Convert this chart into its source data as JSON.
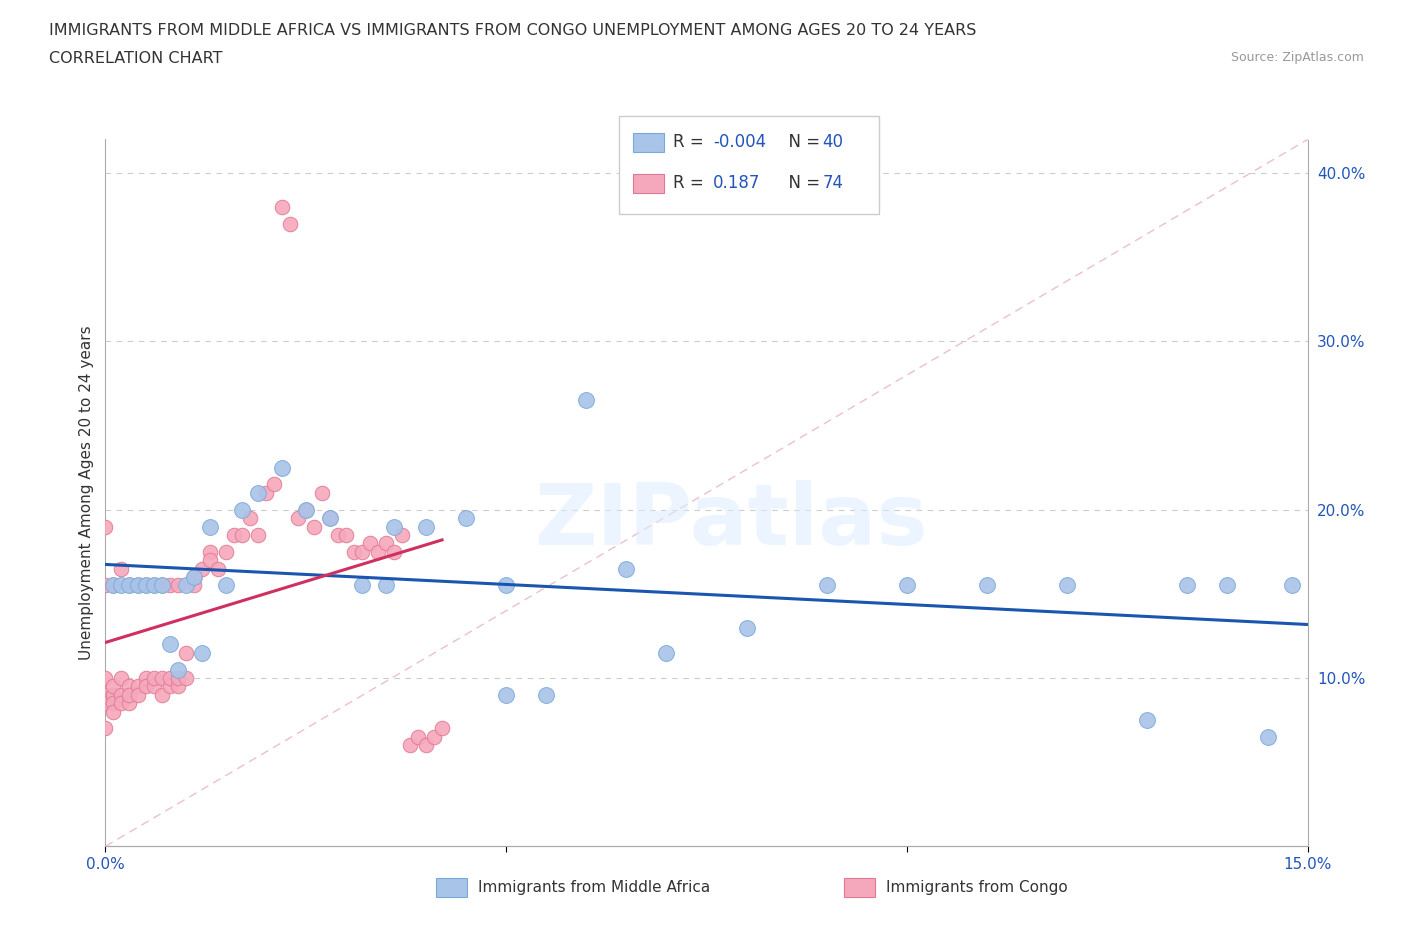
{
  "title_line1": "IMMIGRANTS FROM MIDDLE AFRICA VS IMMIGRANTS FROM CONGO UNEMPLOYMENT AMONG AGES 20 TO 24 YEARS",
  "title_line2": "CORRELATION CHART",
  "source_text": "Source: ZipAtlas.com",
  "ylabel": "Unemployment Among Ages 20 to 24 years",
  "xmin": 0.0,
  "xmax": 0.15,
  "ymin": 0.0,
  "ymax": 0.42,
  "blue_color": "#a8c4e8",
  "pink_color": "#f5a8bc",
  "blue_edge": "#7aa8d8",
  "pink_edge": "#e07890",
  "trend_blue_color": "#1a56b0",
  "trend_pink_color": "#d03060",
  "diag_color": "#e0a0b0",
  "watermark": "ZIPatlas",
  "legend_R_blue": "-0.004",
  "legend_N_blue": "40",
  "legend_R_pink": "0.187",
  "legend_N_pink": "74",
  "blue_x": [
    0.001,
    0.002,
    0.003,
    0.004,
    0.005,
    0.006,
    0.007,
    0.008,
    0.009,
    0.01,
    0.011,
    0.012,
    0.013,
    0.015,
    0.017,
    0.019,
    0.022,
    0.025,
    0.028,
    0.032,
    0.036,
    0.04,
    0.045,
    0.05,
    0.055,
    0.06,
    0.065,
    0.07,
    0.08,
    0.09,
    0.1,
    0.11,
    0.12,
    0.13,
    0.135,
    0.14,
    0.145,
    0.148,
    0.05,
    0.035
  ],
  "blue_y": [
    0.155,
    0.155,
    0.155,
    0.155,
    0.155,
    0.155,
    0.155,
    0.12,
    0.105,
    0.155,
    0.16,
    0.115,
    0.19,
    0.155,
    0.2,
    0.21,
    0.225,
    0.2,
    0.195,
    0.155,
    0.19,
    0.19,
    0.195,
    0.155,
    0.09,
    0.265,
    0.165,
    0.115,
    0.13,
    0.155,
    0.155,
    0.155,
    0.155,
    0.075,
    0.155,
    0.155,
    0.065,
    0.155,
    0.09,
    0.155
  ],
  "pink_x": [
    0.0,
    0.0,
    0.0,
    0.0,
    0.001,
    0.001,
    0.001,
    0.001,
    0.001,
    0.002,
    0.002,
    0.002,
    0.003,
    0.003,
    0.003,
    0.004,
    0.004,
    0.005,
    0.005,
    0.006,
    0.006,
    0.007,
    0.007,
    0.008,
    0.008,
    0.009,
    0.009,
    0.01,
    0.01,
    0.011,
    0.011,
    0.012,
    0.013,
    0.013,
    0.014,
    0.015,
    0.016,
    0.017,
    0.018,
    0.019,
    0.02,
    0.021,
    0.022,
    0.023,
    0.024,
    0.025,
    0.026,
    0.027,
    0.028,
    0.029,
    0.03,
    0.031,
    0.032,
    0.033,
    0.034,
    0.035,
    0.036,
    0.037,
    0.038,
    0.039,
    0.04,
    0.041,
    0.042,
    0.0,
    0.0,
    0.001,
    0.002,
    0.003,
    0.004,
    0.005,
    0.006,
    0.007,
    0.008,
    0.009
  ],
  "pink_y": [
    0.09,
    0.085,
    0.1,
    0.07,
    0.09,
    0.09,
    0.095,
    0.085,
    0.08,
    0.09,
    0.1,
    0.085,
    0.095,
    0.085,
    0.09,
    0.095,
    0.09,
    0.1,
    0.095,
    0.095,
    0.1,
    0.1,
    0.09,
    0.095,
    0.1,
    0.095,
    0.1,
    0.115,
    0.1,
    0.155,
    0.16,
    0.165,
    0.175,
    0.17,
    0.165,
    0.175,
    0.185,
    0.185,
    0.195,
    0.185,
    0.21,
    0.215,
    0.38,
    0.37,
    0.195,
    0.2,
    0.19,
    0.21,
    0.195,
    0.185,
    0.185,
    0.175,
    0.175,
    0.18,
    0.175,
    0.18,
    0.175,
    0.185,
    0.06,
    0.065,
    0.06,
    0.065,
    0.07,
    0.19,
    0.155,
    0.155,
    0.165,
    0.155,
    0.155,
    0.155,
    0.155,
    0.155,
    0.155,
    0.155
  ]
}
